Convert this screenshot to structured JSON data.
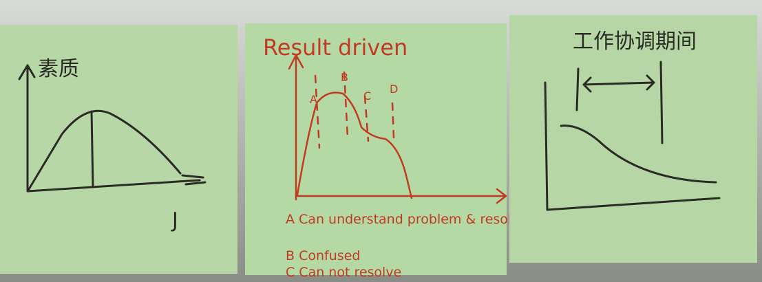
{
  "notes": [
    {
      "title": "素质",
      "axis_label": "J"
    },
    {
      "title": "Result driven",
      "markers": [
        "A",
        "B",
        "C",
        "D"
      ],
      "legend": [
        "A Can understand problem & resolve",
        "B Confused",
        "C Can not resolve"
      ]
    },
    {
      "title": "工作协调期间"
    }
  ]
}
